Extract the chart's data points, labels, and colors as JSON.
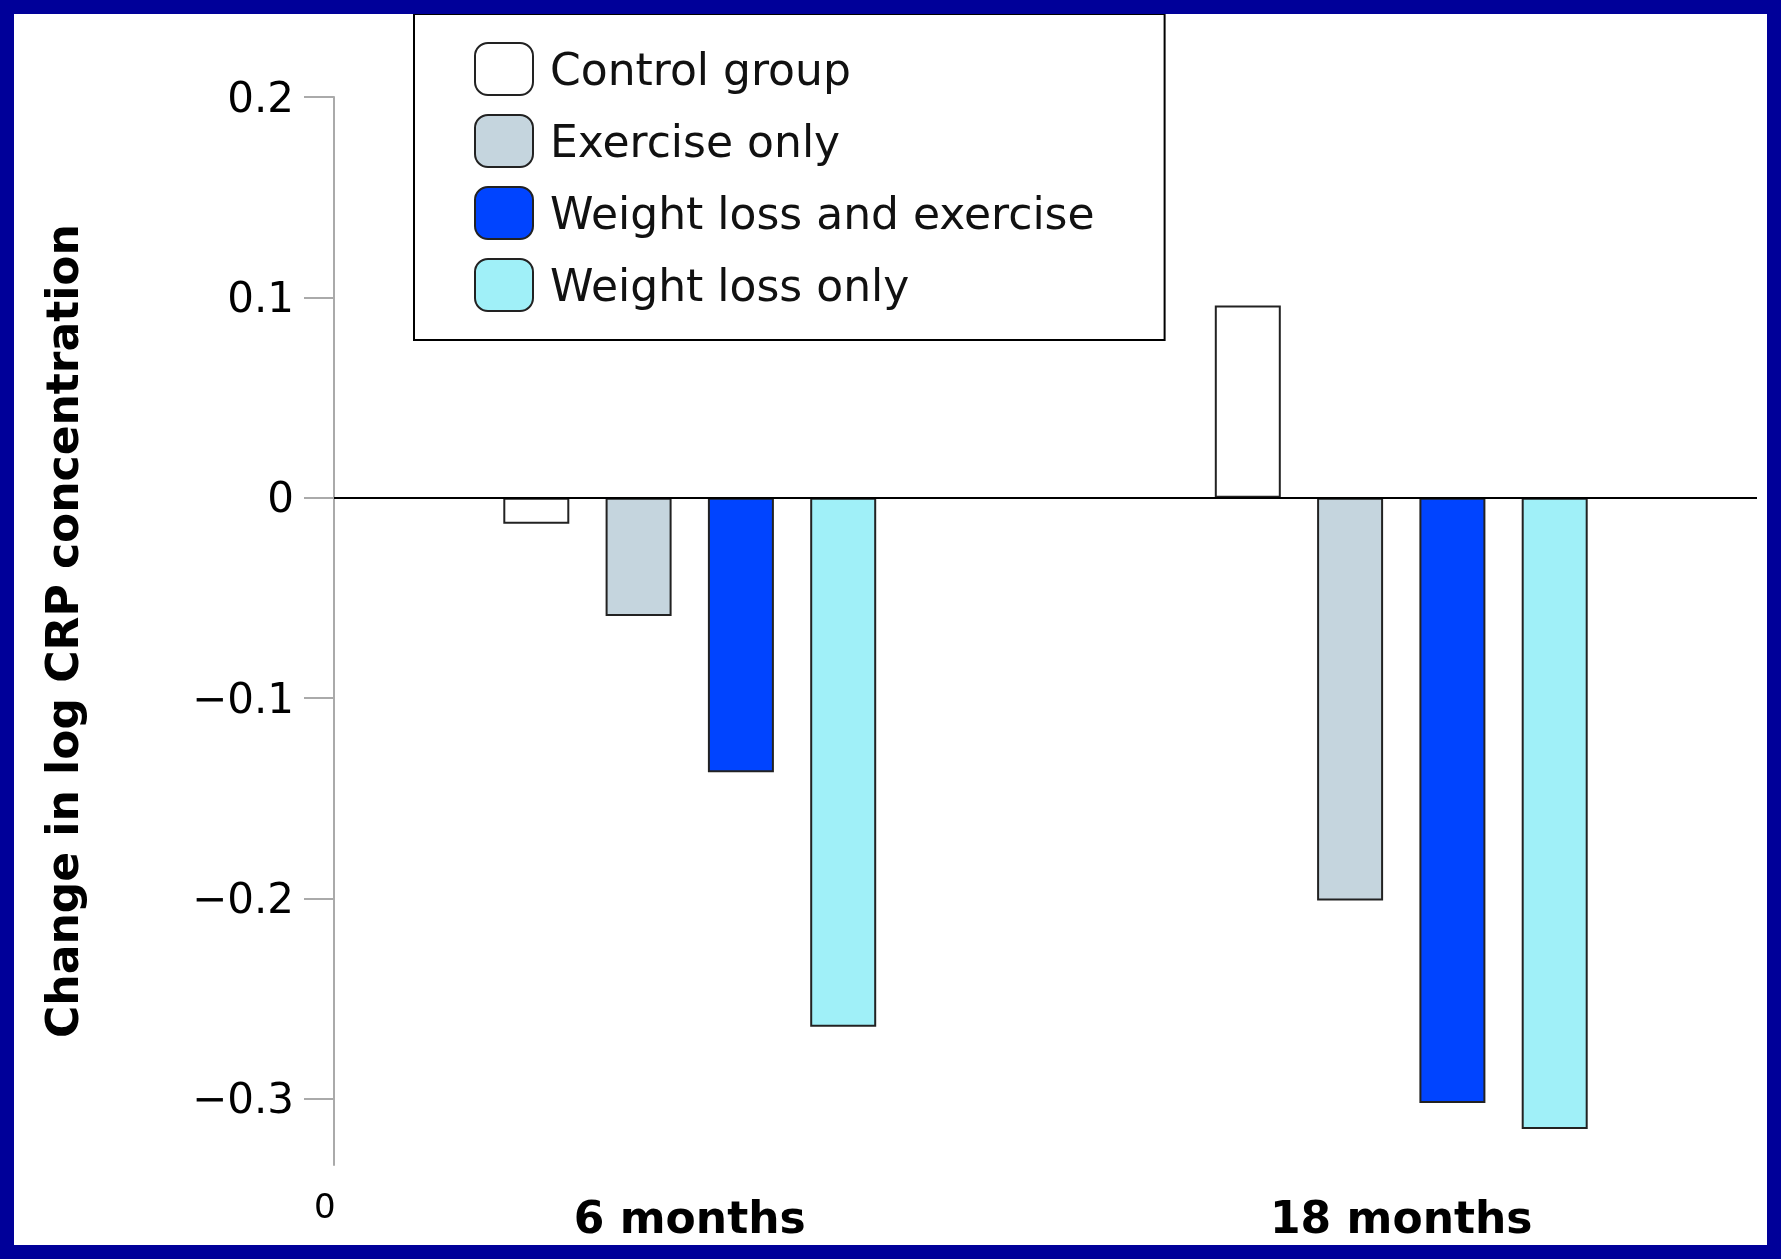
{
  "chart_data": {
    "type": "bar",
    "ylabel": "Change in log CRP concentration",
    "categories": [
      "6 months",
      "18 months"
    ],
    "series": [
      {
        "name": "Control group",
        "color": "#ffffff",
        "values": [
          -0.013,
          0.096
        ]
      },
      {
        "name": "Exercise only",
        "color": "#c5d5de",
        "values": [
          -0.059,
          -0.201
        ]
      },
      {
        "name": "Weight loss and exercise",
        "color": "#0044ff",
        "values": [
          -0.137,
          -0.302
        ]
      },
      {
        "name": "Weight loss only",
        "color": "#a0f0f8",
        "values": [
          -0.264,
          -0.315
        ]
      }
    ],
    "ylim": [
      -0.333,
      0.2
    ],
    "yticks": [
      {
        "value": -0.3,
        "label": "−0.3"
      },
      {
        "value": -0.2,
        "label": "−0.2"
      },
      {
        "value": -0.1,
        "label": "−0.1"
      },
      0,
      0.1,
      0.2
    ],
    "ref_lines": [
      {
        "axis": "y",
        "value": 0
      }
    ],
    "annotations": [
      "0"
    ],
    "grid": false,
    "legend": "top left"
  }
}
